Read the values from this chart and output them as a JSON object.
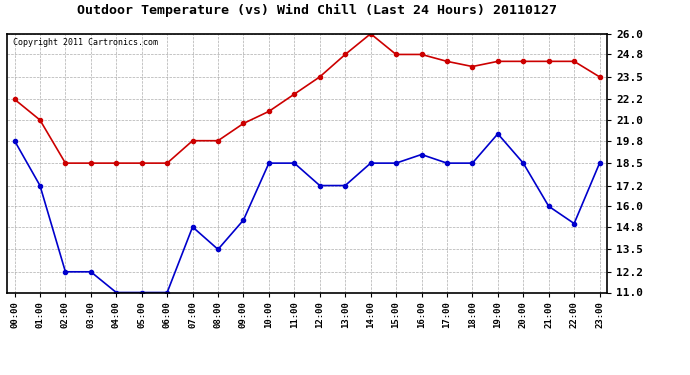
{
  "title": "Outdoor Temperature (vs) Wind Chill (Last 24 Hours) 20110127",
  "copyright": "Copyright 2011 Cartronics.com",
  "x_labels": [
    "00:00",
    "01:00",
    "02:00",
    "03:00",
    "04:00",
    "05:00",
    "06:00",
    "07:00",
    "08:00",
    "09:00",
    "10:00",
    "11:00",
    "12:00",
    "13:00",
    "14:00",
    "15:00",
    "16:00",
    "17:00",
    "18:00",
    "19:00",
    "20:00",
    "21:00",
    "22:00",
    "23:00"
  ],
  "red_data": [
    22.2,
    21.0,
    18.5,
    18.5,
    18.5,
    18.5,
    18.5,
    19.8,
    19.8,
    20.8,
    21.5,
    22.5,
    23.5,
    24.8,
    26.0,
    24.8,
    24.8,
    24.4,
    24.1,
    24.4,
    24.4,
    24.4,
    24.4,
    23.5
  ],
  "blue_data": [
    19.8,
    17.2,
    12.2,
    12.2,
    11.0,
    11.0,
    11.0,
    14.8,
    13.5,
    15.2,
    18.5,
    18.5,
    17.2,
    17.2,
    18.5,
    18.5,
    19.0,
    18.5,
    18.5,
    20.2,
    18.5,
    16.0,
    15.0,
    18.5
  ],
  "ylim": [
    11.0,
    26.0
  ],
  "yticks": [
    11.0,
    12.2,
    13.5,
    14.8,
    16.0,
    17.2,
    18.5,
    19.8,
    21.0,
    22.2,
    23.5,
    24.8,
    26.0
  ],
  "red_color": "#cc0000",
  "blue_color": "#0000cc",
  "bg_color": "#ffffff",
  "grid_color": "#999999"
}
